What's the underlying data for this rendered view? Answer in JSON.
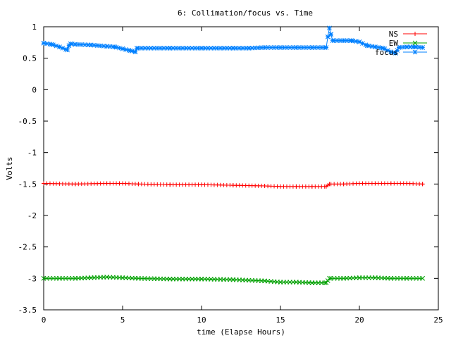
{
  "chart_data": {
    "type": "line",
    "title": "6: Collimation/focus vs. Time",
    "xlabel": "time (Elapse Hours)",
    "ylabel": "Volts",
    "xlim": [
      0,
      25
    ],
    "ylim": [
      -3.5,
      1
    ],
    "xticks": [
      0,
      5,
      10,
      15,
      20,
      25
    ],
    "yticks": [
      -3.5,
      -3,
      -2.5,
      -2,
      -1.5,
      -1,
      -0.5,
      0,
      0.5,
      1
    ],
    "xtick_labels": [
      "0",
      "5",
      "10",
      "15",
      "20",
      "25"
    ],
    "ytick_labels": [
      "-3.5",
      "-3",
      "-2.5",
      "-2",
      "-1.5",
      "-1",
      "-0.5",
      "0",
      "0.5",
      "1"
    ],
    "grid": false,
    "legend": "top-right",
    "series": [
      {
        "name": "NS",
        "color": "#ff0000",
        "marker": "plus",
        "x": [
          0,
          2,
          4,
          5,
          6,
          8,
          10,
          12,
          14,
          15,
          16,
          17,
          17.9,
          18.1,
          19,
          20,
          21,
          22,
          23,
          24
        ],
        "y": [
          -1.49,
          -1.5,
          -1.49,
          -1.49,
          -1.5,
          -1.51,
          -1.51,
          -1.52,
          -1.53,
          -1.54,
          -1.54,
          -1.54,
          -1.54,
          -1.5,
          -1.5,
          -1.49,
          -1.49,
          -1.49,
          -1.49,
          -1.5
        ]
      },
      {
        "name": "EW",
        "color": "#00a000",
        "marker": "cross",
        "x": [
          0,
          1,
          2,
          3,
          4,
          5,
          6,
          8,
          10,
          12,
          14,
          15,
          16,
          17,
          17.9,
          18.1,
          19,
          20,
          21,
          22,
          23,
          24
        ],
        "y": [
          -3.0,
          -3.0,
          -3.0,
          -2.99,
          -2.98,
          -2.99,
          -3.0,
          -3.01,
          -3.01,
          -3.02,
          -3.04,
          -3.06,
          -3.06,
          -3.07,
          -3.07,
          -3.0,
          -3.0,
          -2.99,
          -2.99,
          -3.0,
          -3.0,
          -3.0
        ]
      },
      {
        "name": "focus",
        "color": "#0080ff",
        "marker": "star",
        "x": [
          0,
          0.5,
          1,
          1.5,
          1.6,
          1.7,
          2,
          3,
          4,
          4.5,
          5,
          5.5,
          5.8,
          5.9,
          8,
          10,
          12,
          13,
          14,
          15,
          16,
          17,
          17.8,
          17.9,
          18.0,
          18.1,
          18.2,
          18.3,
          19,
          19.5,
          20,
          20.5,
          21,
          21.5,
          22,
          22.3,
          22.5,
          23,
          23.5,
          24
        ],
        "y": [
          0.74,
          0.72,
          0.68,
          0.63,
          0.7,
          0.73,
          0.72,
          0.71,
          0.69,
          0.68,
          0.65,
          0.62,
          0.6,
          0.66,
          0.66,
          0.66,
          0.66,
          0.66,
          0.67,
          0.67,
          0.67,
          0.67,
          0.67,
          0.67,
          0.84,
          0.98,
          0.88,
          0.78,
          0.78,
          0.78,
          0.76,
          0.7,
          0.68,
          0.66,
          0.6,
          0.58,
          0.67,
          0.68,
          0.68,
          0.67
        ]
      }
    ]
  }
}
